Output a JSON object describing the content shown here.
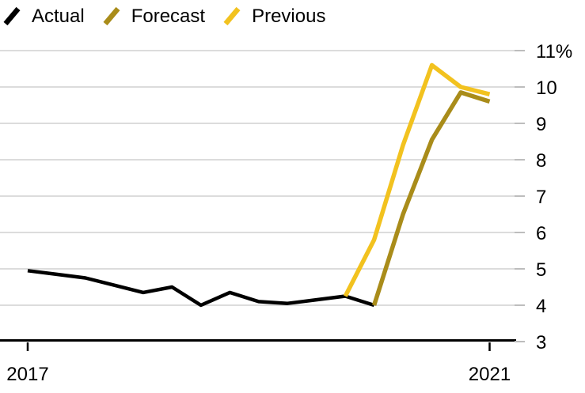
{
  "legend": {
    "items": [
      {
        "label": "Actual",
        "color": "#000000"
      },
      {
        "label": "Forecast",
        "color": "#A98C1A"
      },
      {
        "label": "Previous",
        "color": "#F2C21F"
      }
    ]
  },
  "chart_data": {
    "type": "line",
    "title": "",
    "xlabel": "",
    "ylabel": "",
    "y_unit": "%",
    "ylim": [
      3,
      11
    ],
    "xlim": [
      2016.76,
      2021.3
    ],
    "grid": "horizontal",
    "legend_position": "top-left",
    "yticks": [
      {
        "value": 11,
        "label": "11%"
      },
      {
        "value": 10,
        "label": "10"
      },
      {
        "value": 9,
        "label": "9"
      },
      {
        "value": 8,
        "label": "8"
      },
      {
        "value": 7,
        "label": "7"
      },
      {
        "value": 6,
        "label": "6"
      },
      {
        "value": 5,
        "label": "5"
      },
      {
        "value": 4,
        "label": "4"
      },
      {
        "value": 3,
        "label": "3"
      }
    ],
    "xticks": [
      {
        "value": 2017,
        "label": "2017"
      },
      {
        "value": 2021,
        "label": "2021"
      }
    ],
    "series": [
      {
        "name": "Actual",
        "color": "#000000",
        "stroke_width": 4.5,
        "points": [
          [
            2017.0,
            4.95
          ],
          [
            2017.25,
            4.85
          ],
          [
            2017.5,
            4.75
          ],
          [
            2017.75,
            4.55
          ],
          [
            2018.0,
            4.35
          ],
          [
            2018.25,
            4.5
          ],
          [
            2018.5,
            4.0
          ],
          [
            2018.75,
            4.35
          ],
          [
            2019.0,
            4.1
          ],
          [
            2019.25,
            4.05
          ],
          [
            2019.5,
            4.15
          ],
          [
            2019.75,
            4.25
          ],
          [
            2020.0,
            4.0
          ]
        ]
      },
      {
        "name": "Forecast",
        "color": "#A98C1A",
        "stroke_width": 5.5,
        "points": [
          [
            2020.0,
            4.0
          ],
          [
            2020.25,
            6.5
          ],
          [
            2020.5,
            8.55
          ],
          [
            2020.75,
            9.85
          ],
          [
            2021.0,
            9.6
          ]
        ]
      },
      {
        "name": "Previous",
        "color": "#F2C21F",
        "stroke_width": 5.5,
        "points": [
          [
            2019.75,
            4.25
          ],
          [
            2020.0,
            5.8
          ],
          [
            2020.25,
            8.4
          ],
          [
            2020.5,
            10.6
          ],
          [
            2020.75,
            10.0
          ],
          [
            2021.0,
            9.8
          ]
        ]
      }
    ]
  },
  "colors": {
    "background": "#FFFFFF",
    "gridline": "#DCDCDC",
    "axis": "#000000",
    "tick": "#BDBDBD",
    "text": "#000000"
  }
}
